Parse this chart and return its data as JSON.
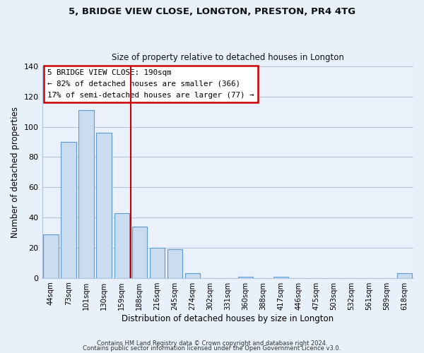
{
  "title": "5, BRIDGE VIEW CLOSE, LONGTON, PRESTON, PR4 4TG",
  "subtitle": "Size of property relative to detached houses in Longton",
  "xlabel": "Distribution of detached houses by size in Longton",
  "ylabel": "Number of detached properties",
  "bar_labels": [
    "44sqm",
    "73sqm",
    "101sqm",
    "130sqm",
    "159sqm",
    "188sqm",
    "216sqm",
    "245sqm",
    "274sqm",
    "302sqm",
    "331sqm",
    "360sqm",
    "388sqm",
    "417sqm",
    "446sqm",
    "475sqm",
    "503sqm",
    "532sqm",
    "561sqm",
    "589sqm",
    "618sqm"
  ],
  "bar_values": [
    29,
    90,
    111,
    96,
    43,
    34,
    20,
    19,
    3,
    0,
    0,
    1,
    0,
    1,
    0,
    0,
    0,
    0,
    0,
    0,
    3
  ],
  "bar_color": "#c9dcf0",
  "bar_edge_color": "#5b9bd5",
  "highlight_bar_index": 5,
  "highlight_color": "#cc0000",
  "annotation_title": "5 BRIDGE VIEW CLOSE: 190sqm",
  "annotation_line1": "← 82% of detached houses are smaller (366)",
  "annotation_line2": "17% of semi-detached houses are larger (77) →",
  "ylim": [
    0,
    140
  ],
  "yticks": [
    0,
    20,
    40,
    60,
    80,
    100,
    120,
    140
  ],
  "footer1": "Contains HM Land Registry data © Crown copyright and database right 2024.",
  "footer2": "Contains public sector information licensed under the Open Government Licence v3.0.",
  "bg_color": "#e8f0fa",
  "plot_bg_color": "#eaf1fb",
  "grid_color": "#b0c4de"
}
